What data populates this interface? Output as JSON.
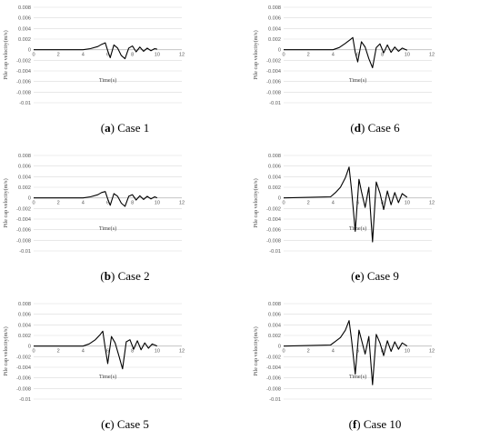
{
  "chart_data": [
    {
      "type": "line",
      "panel_letter": "a",
      "caption": "Case 1",
      "ylabel": "Pile cap velocity(m/s)",
      "xlabel": "Time(s)",
      "xlim": [
        0,
        12
      ],
      "ylim": [
        -0.01,
        0.008
      ],
      "x_ticks": [
        "0",
        "2",
        "4",
        "6",
        "8",
        "10",
        "12"
      ],
      "y_ticks": [
        "0.008",
        "0.006",
        "0.004",
        "0.002",
        "0",
        "-0.002",
        "-0.004",
        "-0.006",
        "-0.008",
        "-0.01"
      ],
      "grid": true,
      "series_points": [
        [
          0,
          0
        ],
        [
          4,
          0
        ],
        [
          4.6,
          0.0002
        ],
        [
          5.2,
          0.0006
        ],
        [
          5.5,
          0.001
        ],
        [
          5.8,
          0.0013
        ],
        [
          6.0,
          -0.0002
        ],
        [
          6.2,
          -0.0015
        ],
        [
          6.5,
          0.0009
        ],
        [
          6.8,
          0.0003
        ],
        [
          7.1,
          -0.0011
        ],
        [
          7.4,
          -0.0017
        ],
        [
          7.7,
          0.0003
        ],
        [
          8.0,
          0.0007
        ],
        [
          8.3,
          -0.0004
        ],
        [
          8.6,
          0.0005
        ],
        [
          8.9,
          -0.0003
        ],
        [
          9.2,
          0.0003
        ],
        [
          9.5,
          -0.0002
        ],
        [
          9.8,
          0.0002
        ],
        [
          10,
          0.0001
        ]
      ]
    },
    {
      "type": "line",
      "panel_letter": "d",
      "caption": "Case 6",
      "ylabel": "Pile cap velocity(m/s)",
      "xlabel": "Time(s)",
      "xlim": [
        0,
        12
      ],
      "ylim": [
        -0.01,
        0.008
      ],
      "x_ticks": [
        "0",
        "2",
        "4",
        "6",
        "8",
        "10",
        "12"
      ],
      "y_ticks": [
        "0.008",
        "0.006",
        "0.004",
        "0.002",
        "0",
        "-0.002",
        "-0.004",
        "-0.006",
        "-0.008",
        "-0.01"
      ],
      "grid": true,
      "series_points": [
        [
          0,
          0
        ],
        [
          4,
          0
        ],
        [
          4.5,
          0.0004
        ],
        [
          5.0,
          0.0012
        ],
        [
          5.4,
          0.0019
        ],
        [
          5.6,
          0.0023
        ],
        [
          5.8,
          -0.0005
        ],
        [
          6.0,
          -0.0023
        ],
        [
          6.3,
          0.0015
        ],
        [
          6.6,
          0.0005
        ],
        [
          6.9,
          -0.0017
        ],
        [
          7.2,
          -0.0034
        ],
        [
          7.5,
          0.0004
        ],
        [
          7.8,
          0.0011
        ],
        [
          8.1,
          -0.0006
        ],
        [
          8.4,
          0.0009
        ],
        [
          8.7,
          -0.0005
        ],
        [
          9.0,
          0.0005
        ],
        [
          9.3,
          -0.0003
        ],
        [
          9.6,
          0.0003
        ],
        [
          10,
          -0.0001
        ]
      ]
    },
    {
      "type": "line",
      "panel_letter": "b",
      "caption": "Case 2",
      "ylabel": "Pile cap velocity(m/s)",
      "xlabel": "Time(s)",
      "xlim": [
        0,
        12
      ],
      "ylim": [
        -0.01,
        0.008
      ],
      "x_ticks": [
        "0",
        "2",
        "4",
        "6",
        "8",
        "10",
        "12"
      ],
      "y_ticks": [
        "0.008",
        "0.006",
        "0.004",
        "0.002",
        "0",
        "-0.002",
        "-0.004",
        "-0.006",
        "-0.008",
        "-0.01"
      ],
      "grid": true,
      "series_points": [
        [
          0,
          0
        ],
        [
          4,
          0
        ],
        [
          4.6,
          0.0002
        ],
        [
          5.2,
          0.0006
        ],
        [
          5.5,
          0.001
        ],
        [
          5.8,
          0.0012
        ],
        [
          6.0,
          -0.0002
        ],
        [
          6.2,
          -0.0014
        ],
        [
          6.5,
          0.0008
        ],
        [
          6.8,
          0.0003
        ],
        [
          7.1,
          -0.001
        ],
        [
          7.4,
          -0.0016
        ],
        [
          7.7,
          0.0003
        ],
        [
          8.0,
          0.0006
        ],
        [
          8.3,
          -0.0004
        ],
        [
          8.6,
          0.0004
        ],
        [
          8.9,
          -0.0003
        ],
        [
          9.2,
          0.0003
        ],
        [
          9.5,
          -0.0002
        ],
        [
          9.8,
          0.0002
        ],
        [
          10,
          0
        ]
      ]
    },
    {
      "type": "line",
      "panel_letter": "e",
      "caption": "Case 9",
      "ylabel": "Pile cap velocity(m/s)",
      "xlabel": "Time(s)",
      "xlim": [
        0,
        12
      ],
      "ylim": [
        -0.01,
        0.008
      ],
      "x_ticks": [
        "0",
        "2",
        "4",
        "6",
        "8",
        "10",
        "12"
      ],
      "y_ticks": [
        "0.008",
        "0.006",
        "0.004",
        "0.002",
        "0",
        "-0.002",
        "-0.004",
        "-0.006",
        "-0.008",
        "-0.01"
      ],
      "grid": true,
      "series_points": [
        [
          0,
          0
        ],
        [
          3.8,
          0.0002
        ],
        [
          4.2,
          0.001
        ],
        [
          4.6,
          0.002
        ],
        [
          5.0,
          0.0038
        ],
        [
          5.3,
          0.0058
        ],
        [
          5.5,
          0.0015
        ],
        [
          5.8,
          -0.0063
        ],
        [
          6.1,
          0.0035
        ],
        [
          6.3,
          0.0012
        ],
        [
          6.6,
          -0.0018
        ],
        [
          6.9,
          0.002
        ],
        [
          7.2,
          -0.0083
        ],
        [
          7.5,
          0.003
        ],
        [
          7.8,
          0.0009
        ],
        [
          8.1,
          -0.0022
        ],
        [
          8.4,
          0.0013
        ],
        [
          8.7,
          -0.0013
        ],
        [
          9.0,
          0.001
        ],
        [
          9.3,
          -0.0009
        ],
        [
          9.6,
          0.0008
        ],
        [
          10,
          0.0001
        ]
      ]
    },
    {
      "type": "line",
      "panel_letter": "c",
      "caption": "Case 5",
      "ylabel": "Pile cap velocity(m/s)",
      "xlabel": "Time(s)",
      "xlim": [
        0,
        12
      ],
      "ylim": [
        -0.01,
        0.008
      ],
      "x_ticks": [
        "0",
        "2",
        "4",
        "6",
        "8",
        "10",
        "12"
      ],
      "y_ticks": [
        "0.008",
        "0.006",
        "0.004",
        "0.002",
        "0",
        "-0.002",
        "-0.004",
        "-0.006",
        "-0.008",
        "-0.01"
      ],
      "grid": true,
      "series_points": [
        [
          0,
          0
        ],
        [
          4,
          0
        ],
        [
          4.5,
          0.0004
        ],
        [
          5.0,
          0.0012
        ],
        [
          5.4,
          0.0022
        ],
        [
          5.6,
          0.0028
        ],
        [
          5.8,
          -0.0004
        ],
        [
          6.0,
          -0.0033
        ],
        [
          6.3,
          0.0018
        ],
        [
          6.6,
          0.0006
        ],
        [
          6.9,
          -0.0018
        ],
        [
          7.2,
          -0.0043
        ],
        [
          7.5,
          0.0008
        ],
        [
          7.8,
          0.0012
        ],
        [
          8.1,
          -0.0006
        ],
        [
          8.4,
          0.001
        ],
        [
          8.7,
          -0.0007
        ],
        [
          9.0,
          0.0006
        ],
        [
          9.3,
          -0.0004
        ],
        [
          9.6,
          0.0004
        ],
        [
          10,
          0
        ]
      ]
    },
    {
      "type": "line",
      "panel_letter": "f",
      "caption": "Case 10",
      "ylabel": "Pile cap velocity(m/s)",
      "xlabel": "Time(s)",
      "xlim": [
        0,
        12
      ],
      "ylim": [
        -0.01,
        0.008
      ],
      "x_ticks": [
        "0",
        "2",
        "4",
        "6",
        "8",
        "10",
        "12"
      ],
      "y_ticks": [
        "0.008",
        "0.006",
        "0.004",
        "0.002",
        "0",
        "-0.002",
        "-0.004",
        "-0.006",
        "-0.008",
        "-0.01"
      ],
      "grid": true,
      "series_points": [
        [
          0,
          0
        ],
        [
          3.8,
          0.0002
        ],
        [
          4.2,
          0.0009
        ],
        [
          4.6,
          0.0016
        ],
        [
          5.0,
          0.003
        ],
        [
          5.3,
          0.0048
        ],
        [
          5.5,
          0.0012
        ],
        [
          5.8,
          -0.0053
        ],
        [
          6.1,
          0.003
        ],
        [
          6.3,
          0.0012
        ],
        [
          6.6,
          -0.0015
        ],
        [
          6.9,
          0.0018
        ],
        [
          7.2,
          -0.0073
        ],
        [
          7.5,
          0.0022
        ],
        [
          7.8,
          0.0006
        ],
        [
          8.1,
          -0.0018
        ],
        [
          8.4,
          0.001
        ],
        [
          8.7,
          -0.001
        ],
        [
          9.0,
          0.0008
        ],
        [
          9.3,
          -0.0006
        ],
        [
          9.6,
          0.0006
        ],
        [
          10,
          0
        ]
      ]
    }
  ]
}
